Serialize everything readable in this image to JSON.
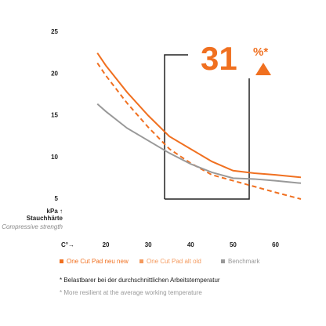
{
  "chart_data": {
    "type": "line",
    "x_label": "C°→",
    "y_label_unit": "kPa ↑",
    "y_label": "Stauchhärte",
    "y_label_en": "Compressive strength",
    "annotation_value": "31",
    "annotation_unit": "%*",
    "x": [
      18,
      20,
      25,
      30,
      35,
      40,
      45,
      50,
      55,
      60,
      66
    ],
    "series": [
      {
        "name": "One Cut Pad neu new",
        "color": "#f07020",
        "dashed": false,
        "values": [
          22.5,
          21,
          17.8,
          15,
          12.5,
          11,
          9.5,
          8.4,
          8.1,
          7.9,
          7.6
        ]
      },
      {
        "name": "One Cut Pad alt old",
        "color": "#f49a5e",
        "line_color": "#f07020",
        "dashed": true,
        "values": [
          21.3,
          19.8,
          16.5,
          13.6,
          11,
          9.3,
          7.9,
          7.2,
          6.5,
          5.8,
          5.0
        ]
      },
      {
        "name": "Benchmark",
        "color": "#999999",
        "dashed": false,
        "values": [
          16.4,
          15.5,
          13.5,
          12,
          10.5,
          9.2,
          8.2,
          7.5,
          7.4,
          7.2,
          6.9
        ]
      }
    ],
    "xlim": [
      15,
      66
    ],
    "xticks": [
      20,
      30,
      40,
      50,
      60
    ],
    "ylim": [
      5,
      25
    ],
    "yticks": [
      5,
      10,
      15,
      20,
      25
    ],
    "footnotes": [
      "* Belastbarer bei der durchschnittlichen Arbeitstemperatur",
      "* More resilient at the average working temperature"
    ]
  }
}
